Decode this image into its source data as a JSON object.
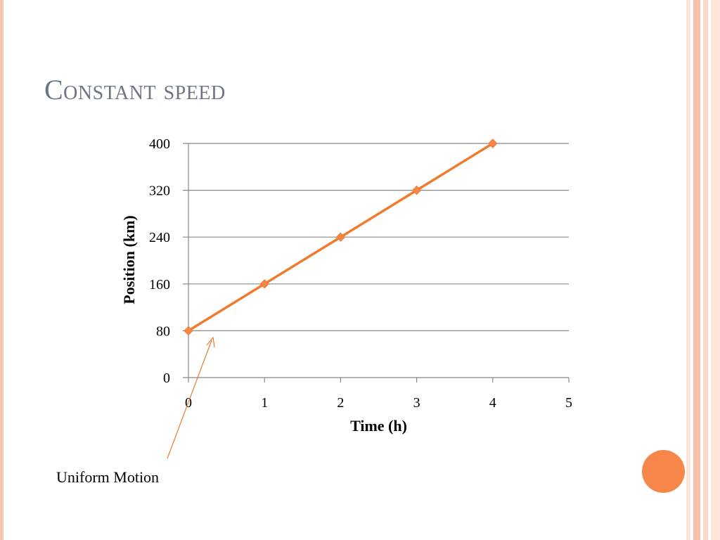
{
  "slide": {
    "title": "Constant speed",
    "annotation": "Uniform Motion"
  },
  "colors": {
    "line": "#f07b2c",
    "marker": "#f7864a",
    "grid": "#888888",
    "title": "#6b7585",
    "accent_circle": "#f7864a",
    "frame": [
      "#fde5da",
      "#f7c2ab",
      "#fbd8c8"
    ]
  },
  "chart_data": {
    "type": "line",
    "title": "",
    "xlabel": "Time (h)",
    "ylabel": "Position (km)",
    "x": [
      0,
      1,
      2,
      3,
      4
    ],
    "series": [
      {
        "values": [
          80,
          160,
          240,
          320,
          400
        ]
      }
    ],
    "xlim": [
      0,
      5
    ],
    "ylim": [
      0,
      400
    ],
    "xticks": [
      0,
      1,
      2,
      3,
      4,
      5
    ],
    "yticks": [
      0,
      80,
      160,
      240,
      320,
      400
    ],
    "grid": "horizontal",
    "legend": "none",
    "marker": "diamond"
  }
}
